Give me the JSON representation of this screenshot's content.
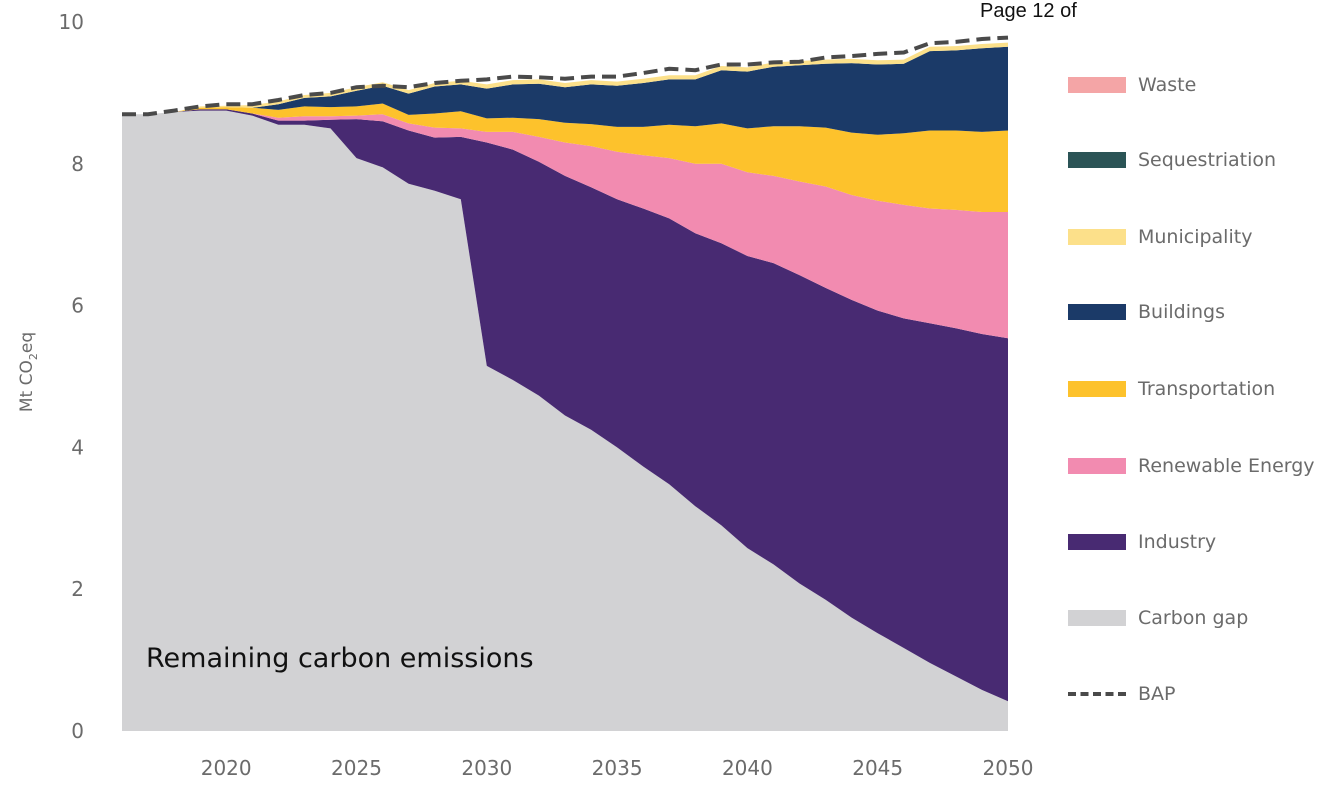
{
  "page_label": "Page 12 of",
  "chart_data": {
    "type": "area",
    "title": "",
    "xlabel": "",
    "ylabel": "Mt CO2eq",
    "ylabel_base": "Mt CO",
    "ylabel_sub": "2",
    "ylabel_tail": "eq",
    "annotation": "Remaining carbon emissions",
    "xlim": [
      2016,
      2050
    ],
    "ylim": [
      0,
      10
    ],
    "x_ticks": [
      "2020",
      "2025",
      "2030",
      "2035",
      "2040",
      "2045",
      "2050"
    ],
    "y_ticks": [
      "0",
      "2",
      "4",
      "6",
      "8",
      "10"
    ],
    "x": [
      2016,
      2017,
      2018,
      2019,
      2020,
      2021,
      2022,
      2023,
      2024,
      2025,
      2026,
      2027,
      2028,
      2029,
      2030,
      2031,
      2032,
      2033,
      2034,
      2035,
      2036,
      2037,
      2038,
      2039,
      2040,
      2041,
      2042,
      2043,
      2044,
      2045,
      2046,
      2047,
      2048,
      2049,
      2050
    ],
    "series": [
      {
        "name": "Carbon gap",
        "color": "#d2d2d4",
        "values": [
          8.7,
          8.7,
          8.73,
          8.75,
          8.75,
          8.68,
          8.55,
          8.55,
          8.5,
          8.08,
          7.95,
          7.72,
          7.62,
          7.5,
          5.15,
          4.95,
          4.73,
          4.45,
          4.25,
          4.0,
          3.73,
          3.48,
          3.17,
          2.9,
          2.58,
          2.35,
          2.08,
          1.85,
          1.6,
          1.38,
          1.17,
          0.96,
          0.77,
          0.58,
          0.42
        ]
      },
      {
        "name": "Industry",
        "color": "#482a72",
        "values": [
          0,
          0,
          0,
          0.02,
          0.02,
          0.03,
          0.06,
          0.06,
          0.12,
          0.55,
          0.65,
          0.75,
          0.75,
          0.88,
          3.15,
          3.25,
          3.3,
          3.38,
          3.42,
          3.5,
          3.64,
          3.75,
          3.85,
          3.98,
          4.12,
          4.25,
          4.35,
          4.4,
          4.48,
          4.55,
          4.65,
          4.79,
          4.91,
          5.02,
          5.12
        ]
      },
      {
        "name": "Renewable Energy",
        "color": "#f28bb0",
        "values": [
          0,
          0,
          0,
          0,
          0,
          0,
          0.04,
          0.06,
          0.05,
          0.05,
          0.1,
          0.1,
          0.14,
          0.12,
          0.15,
          0.25,
          0.35,
          0.47,
          0.58,
          0.67,
          0.75,
          0.85,
          0.98,
          1.12,
          1.18,
          1.23,
          1.32,
          1.43,
          1.48,
          1.55,
          1.6,
          1.62,
          1.67,
          1.72,
          1.78
        ]
      },
      {
        "name": "Transportation",
        "color": "#fdc22c",
        "values": [
          0,
          0,
          0,
          0.02,
          0.03,
          0.08,
          0.11,
          0.14,
          0.13,
          0.13,
          0.15,
          0.12,
          0.2,
          0.24,
          0.19,
          0.2,
          0.25,
          0.28,
          0.31,
          0.35,
          0.4,
          0.47,
          0.53,
          0.57,
          0.62,
          0.7,
          0.78,
          0.83,
          0.88,
          0.93,
          1.01,
          1.1,
          1.12,
          1.13,
          1.15
        ]
      },
      {
        "name": "Buildings",
        "color": "#1b3a68",
        "values": [
          0,
          0,
          0,
          0,
          0,
          0,
          0.08,
          0.12,
          0.15,
          0.22,
          0.25,
          0.3,
          0.38,
          0.38,
          0.42,
          0.47,
          0.5,
          0.5,
          0.56,
          0.58,
          0.62,
          0.64,
          0.66,
          0.75,
          0.8,
          0.84,
          0.86,
          0.9,
          0.98,
          0.99,
          0.98,
          1.12,
          1.13,
          1.18,
          1.18
        ]
      },
      {
        "name": "Municipality",
        "color": "#fce08a",
        "values": [
          0,
          0,
          0,
          0.02,
          0.02,
          0.04,
          0.04,
          0.04,
          0.05,
          0.05,
          0.05,
          0.05,
          0.05,
          0.05,
          0.06,
          0.06,
          0.06,
          0.06,
          0.06,
          0.06,
          0.06,
          0.06,
          0.06,
          0.06,
          0.06,
          0.06,
          0.06,
          0.06,
          0.06,
          0.06,
          0.06,
          0.06,
          0.06,
          0.06,
          0.06
        ]
      },
      {
        "name": "Sequestriation",
        "color": "#2b5456",
        "values": [
          0,
          0,
          0,
          0,
          0,
          0,
          0,
          0,
          0,
          0,
          0,
          0,
          0,
          0,
          0,
          0,
          0,
          0,
          0,
          0,
          0,
          0,
          0,
          0,
          0,
          0,
          0,
          0,
          0,
          0,
          0,
          0,
          0,
          0,
          0
        ]
      },
      {
        "name": "Waste",
        "color": "#f4a5a6",
        "values": [
          0,
          0,
          0,
          0,
          0,
          0,
          0,
          0,
          0,
          0,
          0,
          0,
          0,
          0,
          0,
          0,
          0,
          0,
          0,
          0,
          0,
          0,
          0,
          0,
          0,
          0,
          0,
          0,
          0,
          0,
          0,
          0,
          0,
          0,
          0
        ]
      }
    ],
    "bap": {
      "name": "BAP",
      "color": "#4a4a4a",
      "values": [
        8.7,
        8.7,
        8.75,
        8.81,
        8.84,
        8.84,
        8.9,
        8.97,
        9.0,
        9.08,
        9.1,
        9.08,
        9.14,
        9.17,
        9.19,
        9.23,
        9.22,
        9.2,
        9.23,
        9.23,
        9.28,
        9.34,
        9.32,
        9.4,
        9.4,
        9.43,
        9.44,
        9.5,
        9.52,
        9.55,
        9.57,
        9.7,
        9.72,
        9.76,
        9.78
      ]
    },
    "legend_position": "right",
    "grid": false
  }
}
